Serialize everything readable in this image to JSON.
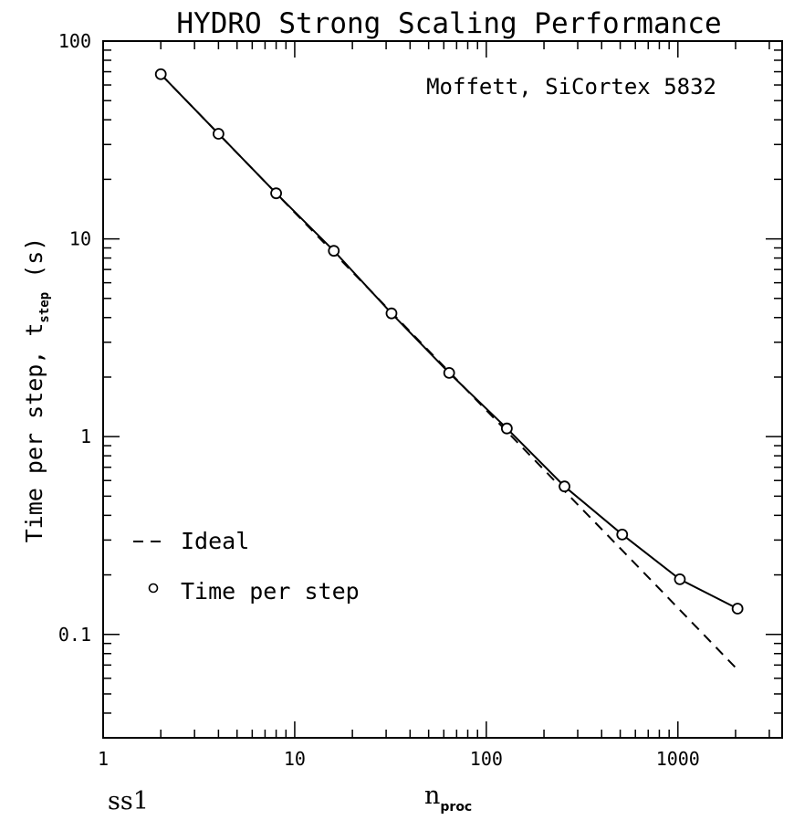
{
  "chart_data": {
    "type": "line",
    "title": "HYDRO Strong Scaling Performance",
    "annotation": "Moffett, SiCortex 5832",
    "footer_label": "ss1",
    "xlabel": {
      "main": "n",
      "subscript": "proc"
    },
    "ylabel": {
      "main": "Time per step, t",
      "subscript": "step",
      "suffix": " (s)"
    },
    "xscale": "log",
    "yscale": "log",
    "xlim": [
      1,
      3500
    ],
    "ylim": [
      0.03,
      100
    ],
    "x_tick_labels": [
      "1",
      "10",
      "100",
      "1000"
    ],
    "y_tick_labels": [
      "0.1",
      "1",
      "10",
      "100"
    ],
    "legend_position": "bottom-left",
    "series": [
      {
        "name": "Ideal",
        "style": "dashed",
        "x": [
          2,
          4,
          8,
          16,
          32,
          64,
          128,
          256,
          512,
          1024,
          2048
        ],
        "y": [
          68,
          34,
          17,
          8.5,
          4.25,
          2.125,
          1.0625,
          0.531,
          0.266,
          0.133,
          0.0664
        ]
      },
      {
        "name": "Time per step",
        "style": "solid-with-circles",
        "x": [
          2,
          4,
          8,
          16,
          32,
          64,
          128,
          256,
          512,
          1024,
          2048
        ],
        "y": [
          68,
          34,
          17,
          8.7,
          4.2,
          2.1,
          1.1,
          0.56,
          0.32,
          0.19,
          0.135
        ]
      }
    ]
  }
}
